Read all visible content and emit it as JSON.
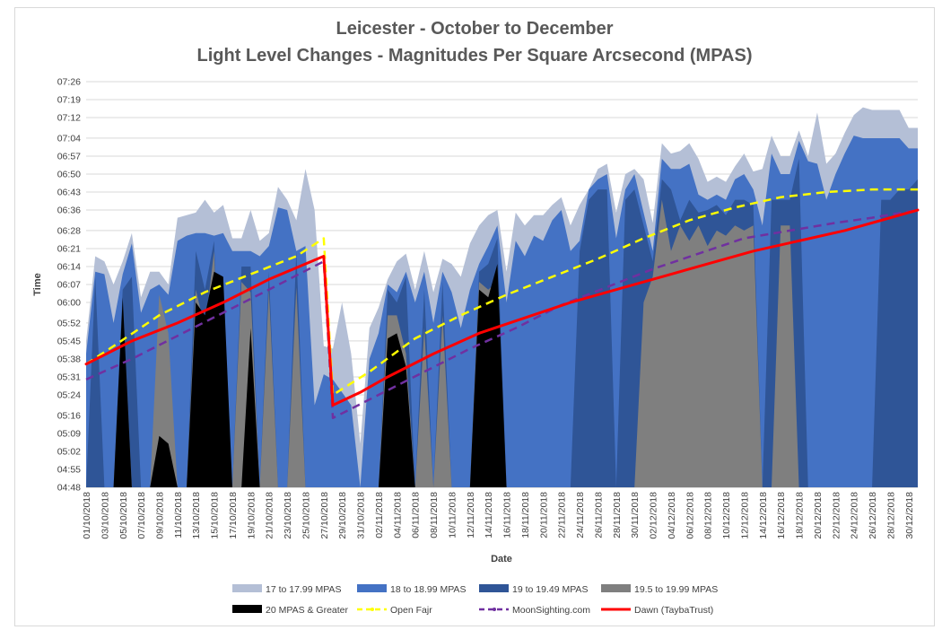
{
  "chart_data": {
    "type": "area",
    "title_line1": "Leicester - October to December",
    "title_line2": "Light Level Changes - Magnitudes Per Square Arcsecond (MPAS)",
    "xlabel": "Date",
    "ylabel": "Time",
    "y_ticks": [
      "04:48",
      "04:55",
      "05:02",
      "05:09",
      "05:16",
      "05:24",
      "05:31",
      "05:38",
      "05:45",
      "05:52",
      "06:00",
      "06:07",
      "06:14",
      "06:21",
      "06:28",
      "06:36",
      "06:43",
      "06:50",
      "06:57",
      "07:04",
      "07:12",
      "07:19",
      "07:26"
    ],
    "ylim": [
      "04:48",
      "07:26"
    ],
    "grid": "horizontal",
    "legend_position": "bottom",
    "x_tick_labels": [
      "01/10/2018",
      "03/10/2018",
      "05/10/2018",
      "07/10/2018",
      "09/10/2018",
      "11/10/2018",
      "13/10/2018",
      "15/10/2018",
      "17/10/2018",
      "19/10/2018",
      "21/10/2018",
      "23/10/2018",
      "25/10/2018",
      "27/10/2018",
      "29/10/2018",
      "31/10/2018",
      "02/11/2018",
      "04/11/2018",
      "06/11/2018",
      "08/11/2018",
      "10/11/2018",
      "12/11/2018",
      "14/11/2018",
      "16/11/2018",
      "18/11/2018",
      "20/11/2018",
      "22/11/2018",
      "24/11/2018",
      "26/11/2018",
      "28/11/2018",
      "30/11/2018",
      "02/12/2018",
      "04/12/2018",
      "06/12/2018",
      "08/12/2018",
      "10/12/2018",
      "12/12/2018",
      "14/12/2018",
      "16/12/2018",
      "18/12/2018",
      "20/12/2018",
      "22/12/2018",
      "24/12/2018",
      "26/12/2018",
      "28/12/2018",
      "30/12/2018"
    ],
    "x_start": "01/10/2018",
    "num_days": 92,
    "series_area": [
      {
        "name": "17 to 17.99 MPAS",
        "color": "#b4bfd6",
        "values": [
          "05:45",
          "06:18",
          "06:16",
          "06:07",
          "06:16",
          "06:27",
          "06:02",
          "06:12",
          "06:12",
          "06:07",
          "06:33",
          "06:34",
          "06:35",
          "06:40",
          "06:35",
          "06:38",
          "06:25",
          "06:25",
          "06:36",
          "06:24",
          "06:27",
          "06:45",
          "06:40",
          "06:32",
          "06:52",
          "06:36",
          "05:43",
          "05:42",
          "06:00",
          "05:40",
          "05:05",
          "05:50",
          "05:58",
          "06:09",
          "06:16",
          "06:19",
          "06:05",
          "06:20",
          "06:04",
          "06:17",
          "06:15",
          "06:10",
          "06:23",
          "06:30",
          "06:34",
          "06:36",
          "06:12",
          "06:35",
          "06:30",
          "06:34",
          "06:34",
          "06:38",
          "06:41",
          "06:30",
          "06:38",
          "06:44",
          "06:52",
          "06:54",
          "06:35",
          "06:50",
          "06:52",
          "06:48",
          "06:31",
          "07:02",
          "06:58",
          "06:59",
          "07:02",
          "06:56",
          "06:47",
          "06:49",
          "06:47",
          "06:53",
          "06:58",
          "06:51",
          "06:52",
          "07:05",
          "06:57",
          "06:57",
          "07:07",
          "06:57",
          "07:14",
          "06:54",
          "06:58",
          "07:06",
          "07:13",
          "07:16",
          "07:15",
          "07:15",
          "07:15",
          "07:15",
          "07:08",
          "07:08"
        ]
      },
      {
        "name": "18 to 18.99 MPAS",
        "color": "#4472c4",
        "values": [
          "05:40",
          "06:12",
          "06:11",
          "05:52",
          "06:11",
          "06:23",
          "05:56",
          "06:05",
          "06:07",
          "06:03",
          "06:24",
          "06:26",
          "06:27",
          "06:27",
          "06:26",
          "06:27",
          "06:20",
          "06:20",
          "06:20",
          "06:18",
          "06:22",
          "06:37",
          "06:36",
          "06:20",
          "06:22",
          "05:20",
          "05:32",
          "05:30",
          "05:25",
          "05:20",
          "04:48",
          "05:38",
          "05:48",
          "06:07",
          "06:04",
          "06:12",
          "06:00",
          "06:12",
          "05:52",
          "06:12",
          "06:04",
          "05:50",
          "06:05",
          "06:15",
          "06:22",
          "06:30",
          "06:00",
          "06:24",
          "06:18",
          "06:26",
          "06:24",
          "06:32",
          "06:36",
          "06:20",
          "06:24",
          "06:44",
          "06:48",
          "06:50",
          "06:25",
          "06:44",
          "06:50",
          "06:35",
          "06:20",
          "06:56",
          "06:52",
          "06:52",
          "06:54",
          "06:42",
          "06:40",
          "06:42",
          "06:40",
          "06:48",
          "06:50",
          "06:44",
          "06:30",
          "06:58",
          "06:50",
          "06:50",
          "07:03",
          "06:55",
          "06:54",
          "06:40",
          "06:50",
          "06:58",
          "07:05",
          "07:04",
          "07:04",
          "07:04",
          "07:04",
          "07:04",
          "07:00",
          "07:00"
        ]
      },
      {
        "name": "19 to 19.49 MPAS",
        "color": "#2f5597",
        "values": [
          "04:48",
          "06:10",
          "04:48",
          "04:48",
          "06:05",
          "06:10",
          "04:48",
          "04:48",
          "05:50",
          "05:40",
          "04:48",
          "04:48",
          "06:20",
          "06:05",
          "06:24",
          "04:48",
          "04:48",
          "06:14",
          "06:14",
          "04:48",
          "06:12",
          "04:48",
          "04:48",
          "06:20",
          "04:48",
          "04:48",
          "04:48",
          "04:48",
          "04:48",
          "04:48",
          "04:48",
          "04:48",
          "04:48",
          "06:05",
          "06:00",
          "06:10",
          "04:48",
          "06:05",
          "04:48",
          "06:08",
          "04:48",
          "04:48",
          "04:48",
          "06:12",
          "06:15",
          "06:25",
          "04:48",
          "04:48",
          "04:48",
          "04:48",
          "04:48",
          "04:48",
          "04:48",
          "04:48",
          "06:20",
          "06:40",
          "06:44",
          "06:44",
          "04:48",
          "06:40",
          "06:44",
          "06:30",
          "06:16",
          "06:48",
          "06:44",
          "06:32",
          "06:40",
          "06:35",
          "06:36",
          "06:38",
          "06:34",
          "06:40",
          "06:40",
          "06:38",
          "04:48",
          "06:40",
          "06:40",
          "06:40",
          "06:56",
          "04:48",
          "04:48",
          "04:48",
          "04:48",
          "04:48",
          "04:48",
          "04:48",
          "04:48",
          "06:40",
          "06:40",
          "06:44",
          "06:44",
          "06:48"
        ]
      },
      {
        "name": "19.5 to 19.99 MPAS",
        "color": "#7f7f7f",
        "values": [
          "04:48",
          "04:48",
          "04:48",
          "04:48",
          "06:00",
          "04:48",
          "04:48",
          "04:48",
          "06:03",
          "05:48",
          "04:48",
          "04:48",
          "06:05",
          "05:50",
          "06:20",
          "04:48",
          "04:48",
          "06:08",
          "06:04",
          "04:48",
          "06:05",
          "04:48",
          "04:48",
          "06:06",
          "04:48",
          "04:48",
          "04:48",
          "04:48",
          "04:48",
          "04:48",
          "04:48",
          "04:48",
          "04:48",
          "05:55",
          "05:55",
          "05:40",
          "04:48",
          "05:50",
          "04:48",
          "05:55",
          "04:48",
          "04:48",
          "04:48",
          "06:08",
          "06:05",
          "06:08",
          "04:48",
          "04:48",
          "04:48",
          "04:48",
          "04:48",
          "04:48",
          "04:48",
          "04:48",
          "04:48",
          "04:48",
          "04:48",
          "04:48",
          "04:48",
          "04:48",
          "04:48",
          "06:00",
          "06:10",
          "06:40",
          "06:20",
          "06:30",
          "06:24",
          "06:30",
          "06:22",
          "06:28",
          "06:26",
          "06:30",
          "06:28",
          "06:30",
          "04:48",
          "04:48",
          "06:30",
          "06:30",
          "04:48",
          "04:48",
          "04:48",
          "04:48",
          "04:48",
          "04:48",
          "04:48",
          "04:48",
          "04:48",
          "04:48",
          "04:48",
          "04:48",
          "04:48",
          "04:48"
        ]
      },
      {
        "name": "20 MPAS & Greater",
        "color": "#000000",
        "values": [
          "04:48",
          "04:48",
          "04:48",
          "04:48",
          "06:02",
          "04:48",
          "04:48",
          "04:48",
          "05:08",
          "05:05",
          "04:48",
          "04:48",
          "06:00",
          "05:55",
          "06:12",
          "06:10",
          "04:48",
          "04:48",
          "05:50",
          "04:48",
          "04:48",
          "04:48",
          "04:48",
          "04:48",
          "04:48",
          "04:48",
          "04:48",
          "04:48",
          "04:48",
          "04:48",
          "04:48",
          "04:48",
          "04:48",
          "05:46",
          "05:48",
          "05:35",
          "04:48",
          "04:48",
          "04:48",
          "04:48",
          "04:48",
          "04:48",
          "04:48",
          "06:05",
          "06:02",
          "06:15",
          "04:48",
          "04:48",
          "04:48",
          "04:48",
          "04:48",
          "04:48",
          "04:48",
          "04:48",
          "04:48",
          "04:48",
          "04:48",
          "04:48",
          "04:48",
          "04:48",
          "04:48",
          "04:48",
          "04:48",
          "04:48",
          "04:48",
          "04:48",
          "04:48",
          "04:48",
          "04:48",
          "04:48",
          "04:48",
          "04:48",
          "04:48",
          "04:48",
          "04:48",
          "04:48",
          "04:48",
          "04:48",
          "04:48",
          "04:48",
          "04:48",
          "04:48",
          "04:48",
          "04:48",
          "04:48",
          "04:48",
          "04:48",
          "04:48",
          "04:48",
          "04:48",
          "04:48",
          "04:48"
        ]
      }
    ],
    "series_line": [
      {
        "name": "Open Fajr",
        "color": "#ffff00",
        "style": "dashed",
        "points": [
          [
            "01/10/2018",
            "05:36"
          ],
          [
            "04/10/2018",
            "05:43"
          ],
          [
            "09/10/2018",
            "05:55"
          ],
          [
            "14/10/2018",
            "06:04"
          ],
          [
            "19/10/2018",
            "06:11"
          ],
          [
            "24/10/2018",
            "06:18"
          ],
          [
            "27/10/2018",
            "06:25"
          ],
          [
            "28/10/2018",
            "05:24"
          ],
          [
            "01/11/2018",
            "05:33"
          ],
          [
            "06/11/2018",
            "05:46"
          ],
          [
            "11/11/2018",
            "05:55"
          ],
          [
            "16/11/2018",
            "06:03"
          ],
          [
            "21/11/2018",
            "06:10"
          ],
          [
            "26/11/2018",
            "06:17"
          ],
          [
            "01/12/2018",
            "06:25"
          ],
          [
            "06/12/2018",
            "06:32"
          ],
          [
            "11/12/2018",
            "06:37"
          ],
          [
            "16/12/2018",
            "06:41"
          ],
          [
            "21/12/2018",
            "06:43"
          ],
          [
            "26/12/2018",
            "06:44"
          ],
          [
            "31/12/2018",
            "06:44"
          ]
        ]
      },
      {
        "name": "MoonSighting.com",
        "color": "#7030a0",
        "style": "dashed",
        "points": [
          [
            "01/10/2018",
            "05:30"
          ],
          [
            "06/10/2018",
            "05:38"
          ],
          [
            "11/10/2018",
            "05:47"
          ],
          [
            "16/10/2018",
            "05:56"
          ],
          [
            "21/10/2018",
            "06:05"
          ],
          [
            "27/10/2018",
            "06:16"
          ],
          [
            "28/10/2018",
            "05:15"
          ],
          [
            "02/11/2018",
            "05:24"
          ],
          [
            "07/11/2018",
            "05:33"
          ],
          [
            "12/11/2018",
            "05:42"
          ],
          [
            "17/11/2018",
            "05:50"
          ],
          [
            "22/11/2018",
            "05:59"
          ],
          [
            "27/11/2018",
            "06:06"
          ],
          [
            "02/12/2018",
            "06:13"
          ],
          [
            "07/12/2018",
            "06:19"
          ],
          [
            "12/12/2018",
            "06:25"
          ],
          [
            "17/12/2018",
            "06:28"
          ],
          [
            "22/12/2018",
            "06:31"
          ],
          [
            "26/12/2018",
            "06:33"
          ],
          [
            "31/12/2018",
            "06:36"
          ]
        ]
      },
      {
        "name": "Dawn (TaybaTrust)",
        "color": "#ff0000",
        "style": "solid",
        "points": [
          [
            "01/10/2018",
            "05:36"
          ],
          [
            "06/10/2018",
            "05:45"
          ],
          [
            "11/10/2018",
            "05:52"
          ],
          [
            "16/10/2018",
            "06:00"
          ],
          [
            "21/10/2018",
            "06:09"
          ],
          [
            "27/10/2018",
            "06:18"
          ],
          [
            "28/10/2018",
            "05:20"
          ],
          [
            "31/10/2018",
            "05:25"
          ],
          [
            "03/11/2018",
            "05:31"
          ],
          [
            "08/11/2018",
            "05:40"
          ],
          [
            "13/11/2018",
            "05:48"
          ],
          [
            "18/11/2018",
            "05:54"
          ],
          [
            "23/11/2018",
            "06:00"
          ],
          [
            "28/11/2018",
            "06:05"
          ],
          [
            "03/12/2018",
            "06:10"
          ],
          [
            "08/12/2018",
            "06:15"
          ],
          [
            "13/12/2018",
            "06:20"
          ],
          [
            "18/12/2018",
            "06:24"
          ],
          [
            "23/12/2018",
            "06:28"
          ],
          [
            "28/12/2018",
            "06:33"
          ],
          [
            "31/12/2018",
            "06:36"
          ]
        ]
      }
    ],
    "legend": [
      {
        "label": "17 to 17.99 MPAS",
        "kind": "box",
        "color": "#b4bfd6"
      },
      {
        "label": "18 to 18.99 MPAS",
        "kind": "box",
        "color": "#4472c4"
      },
      {
        "label": "19 to 19.49 MPAS",
        "kind": "box",
        "color": "#2f5597"
      },
      {
        "label": "19.5 to 19.99 MPAS",
        "kind": "box",
        "color": "#7f7f7f"
      },
      {
        "label": "20 MPAS & Greater",
        "kind": "box",
        "color": "#000000"
      },
      {
        "label": "Open Fajr",
        "kind": "dash",
        "color": "#ffff00"
      },
      {
        "label": "MoonSighting.com",
        "kind": "dash",
        "color": "#7030a0"
      },
      {
        "label": "Dawn (TaybaTrust)",
        "kind": "line",
        "color": "#ff0000"
      }
    ]
  }
}
